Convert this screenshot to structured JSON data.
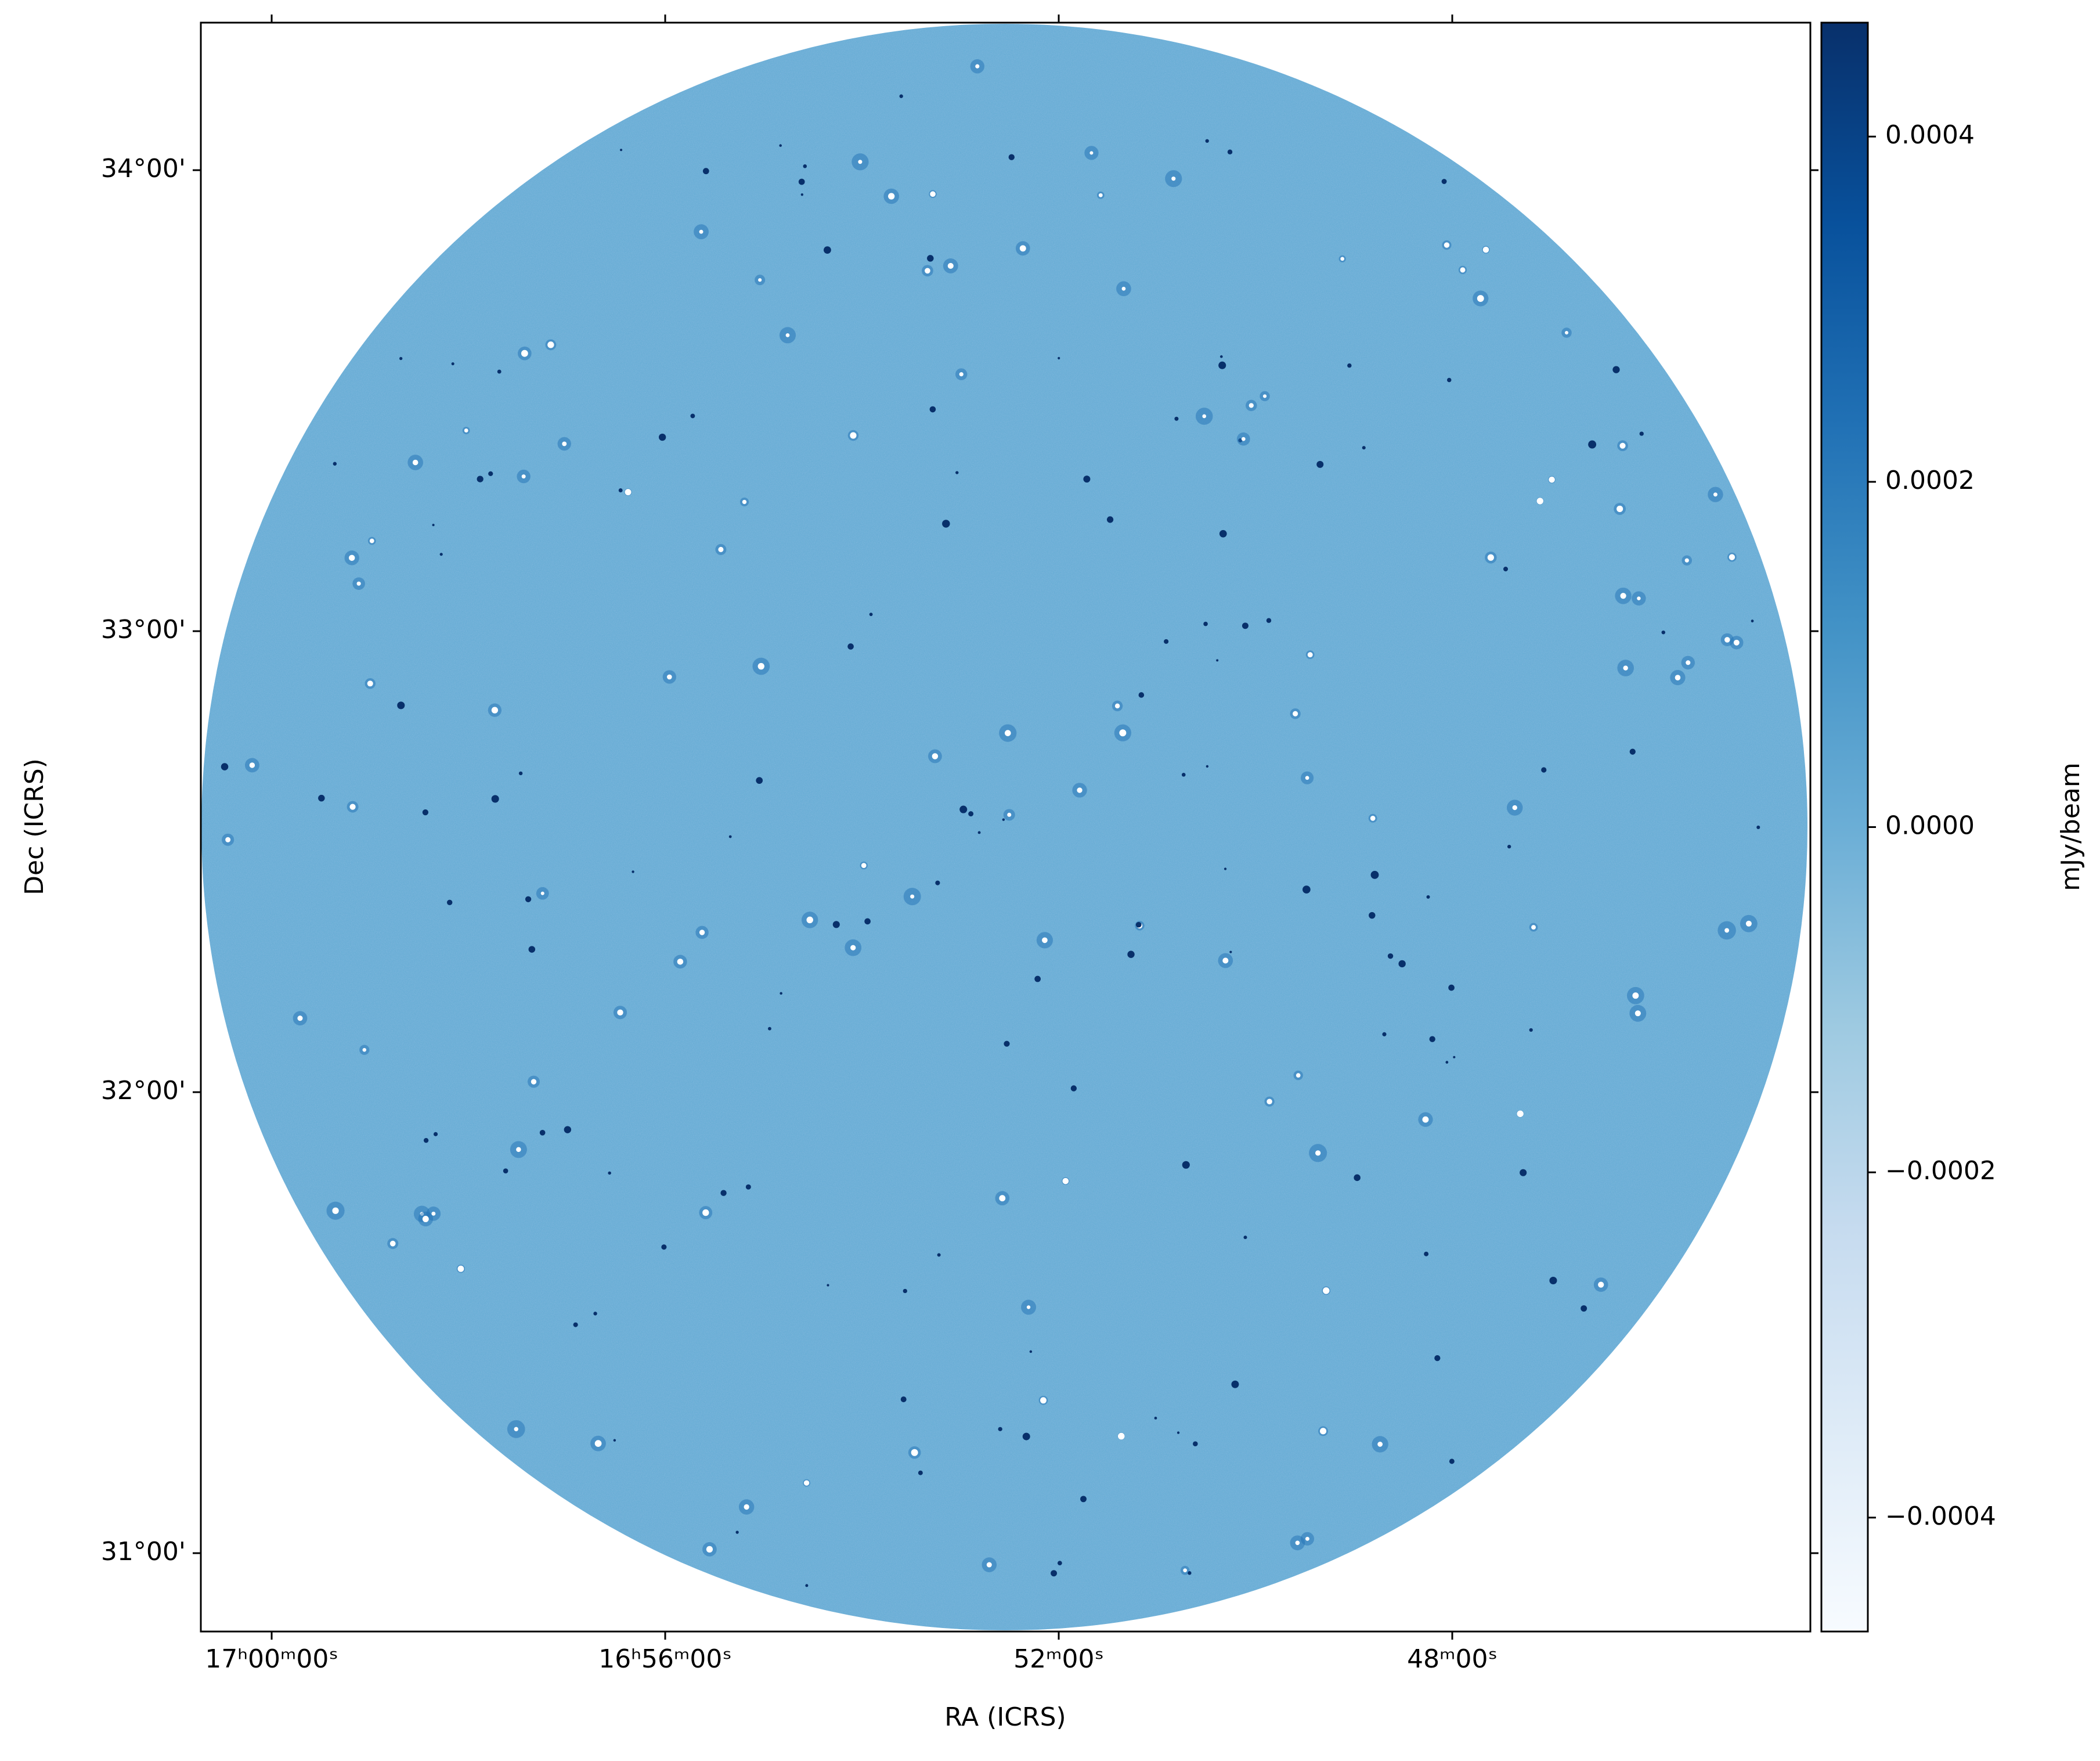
{
  "chart_data": {
    "type": "image",
    "xlabel": "RA (ICRS)",
    "ylabel": "Dec (ICRS)",
    "colorbar_label": "mJy/beam",
    "colormap": "Blues",
    "xlim": [
      255.18,
      251.09
    ],
    "ylim": [
      30.83,
      34.32
    ],
    "xticks": [
      {
        "value": 255,
        "label": "17ʰ00ᵐ00ˢ"
      },
      {
        "value": 254,
        "label": "16ʰ56ᵐ00ˢ"
      },
      {
        "value": 253,
        "label": "52ᵐ00ˢ"
      },
      {
        "value": 252,
        "label": "48ᵐ00ˢ"
      }
    ],
    "yticks": [
      {
        "value": 31,
        "label": "31°00'"
      },
      {
        "value": 32,
        "label": "32°00'"
      },
      {
        "value": 33,
        "label": "33°00'"
      },
      {
        "value": 34,
        "label": "34°00'"
      }
    ],
    "clim": [
      -0.000466,
      0.000466
    ],
    "cticks": [
      {
        "value": -0.0004,
        "label": "−0.0004"
      },
      {
        "value": -0.0002,
        "label": "−0.0002"
      },
      {
        "value": 0,
        "label": "0.0000"
      },
      {
        "value": 0.0002,
        "label": "0.0002"
      },
      {
        "value": 0.0004,
        "label": "0.0004"
      }
    ]
  }
}
